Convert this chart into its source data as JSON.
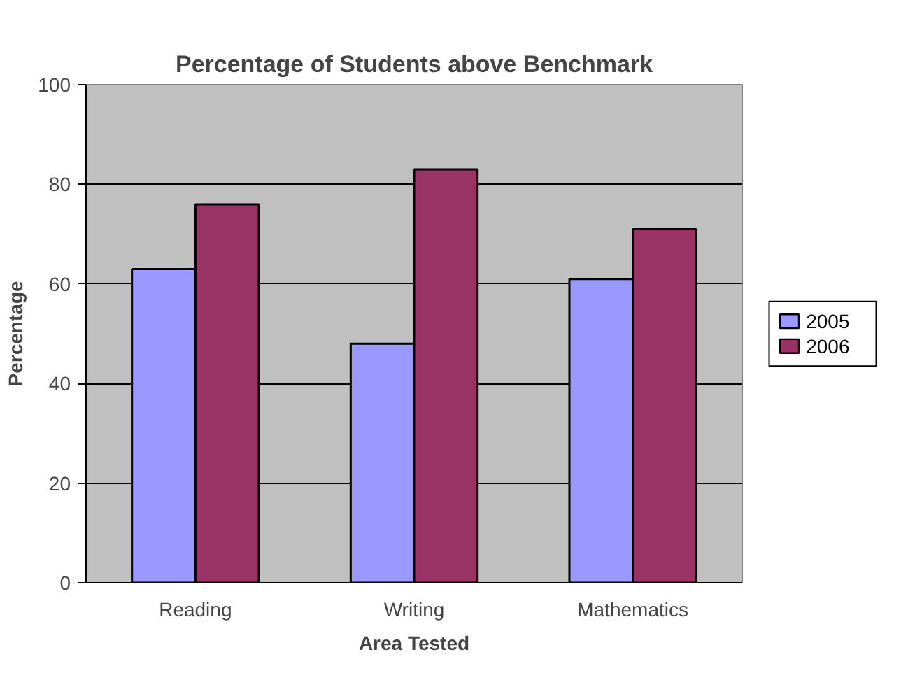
{
  "chart_data": {
    "type": "bar",
    "title": "Percentage of Students above Benchmark",
    "xlabel": "Area Tested",
    "ylabel": "Percentage",
    "categories": [
      "Reading",
      "Writing",
      "Mathematics"
    ],
    "series": [
      {
        "name": "2005",
        "color": "#9999ff",
        "values": [
          63,
          48,
          61
        ]
      },
      {
        "name": "2006",
        "color": "#993366",
        "values": [
          76,
          83,
          71
        ]
      }
    ],
    "ylim": [
      0,
      100
    ],
    "yticks": [
      0,
      20,
      40,
      60,
      80,
      100
    ],
    "grid": "y",
    "legend": "right"
  }
}
